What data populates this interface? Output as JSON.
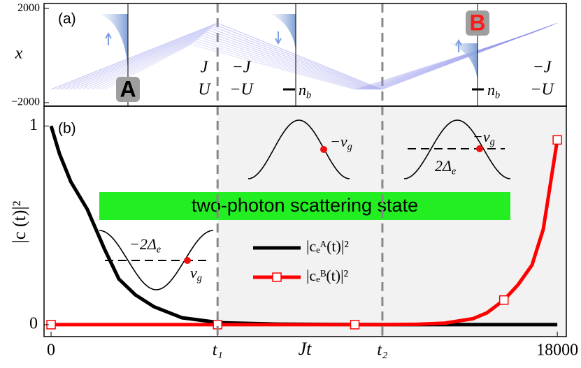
{
  "chart_data": [
    {
      "type": "schematic",
      "title": "(a)",
      "ylabel": "x",
      "xlim": [
        -250,
        18320
      ],
      "ylim": [
        -2150,
        2210
      ],
      "yticks": [
        2000,
        {
          "value": -2000,
          "label": "−2000"
        }
      ],
      "markers": [
        "A",
        "B"
      ],
      "labels": [
        "J",
        "U",
        "−J",
        "−U",
        "−J",
        "−U"
      ],
      "nb": [
        {
          "main": "n",
          "sub": "b"
        },
        {
          "main": "n",
          "sub": "b"
        }
      ]
    },
    {
      "type": "line",
      "title": "(b)",
      "ylabel": "|c (t)|²",
      "xlabel": "Jt",
      "xlim": [
        -250,
        18320
      ],
      "ylim": [
        -0.06,
        1.1
      ],
      "xticks": [
        0,
        {
          "value": 5920,
          "label": "t₁"
        },
        {
          "value": 11780,
          "label": "t₂"
        },
        18000
      ],
      "yticks": [
        0,
        1
      ],
      "banner": "two-photon scattering state",
      "insets": [
        {
          "main": "−v",
          "sub": "g"
        },
        {
          "main": "−v",
          "sub": "g"
        },
        {
          "main": "2Δ",
          "sub": "e"
        },
        {
          "main": "−2Δ",
          "sub": "e"
        },
        {
          "main": "v",
          "sub": "g"
        }
      ],
      "series": [
        {
          "name": "|cₑᴬ(t)|²",
          "color": "#000000",
          "x": [
            0,
            300,
            700,
            1290,
            1900,
            2410,
            3000,
            3660,
            4650,
            6000,
            8000,
            10000,
            12000,
            14000,
            16000,
            18000
          ],
          "values": [
            1,
            0.86,
            0.72,
            0.58,
            0.38,
            0.23,
            0.15,
            0.09,
            0.035,
            0.01,
            0.003,
            0.001,
            0,
            0,
            0,
            0
          ]
        },
        {
          "name": "|cₑᴮ(t)|²",
          "color": "#ff0000",
          "x": [
            0,
            2000,
            4000,
            6000,
            8000,
            10000,
            12000,
            13000,
            14000,
            15000,
            15500,
            16100,
            16600,
            17100,
            17500,
            18000
          ],
          "values": [
            0,
            0,
            0,
            0,
            0,
            0,
            0,
            0.002,
            0.008,
            0.03,
            0.06,
            0.124,
            0.2,
            0.3,
            0.48,
            0.93
          ],
          "markers": {
            "x": [
              0,
              5920,
              10800,
              16100,
              18000
            ],
            "values": [
              0,
              0,
              0,
              0.124,
              0.93
            ]
          }
        }
      ]
    }
  ]
}
